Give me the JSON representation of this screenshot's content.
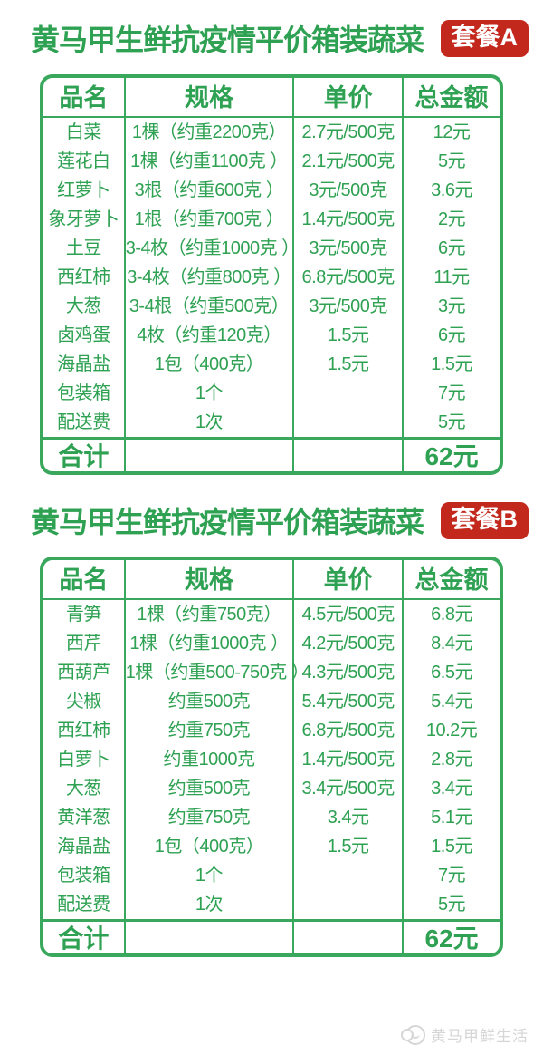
{
  "colors": {
    "green_text": "#2ea152",
    "green_border": "#3aa85c",
    "badge_red": "#c3281c",
    "badge_text": "#ffffff",
    "watermark_gray": "#d6d6d6",
    "background": "#ffffff"
  },
  "packages": [
    {
      "title": "黄马甲生鲜抗疫情平价箱装蔬菜",
      "badge": "套餐A",
      "columns": [
        "品名",
        "规格",
        "单价",
        "总金额"
      ],
      "rows": [
        [
          "白菜",
          "1棵（约重2200克）",
          "2.7元/500克",
          "12元"
        ],
        [
          "莲花白",
          "1棵（约重1100克 ）",
          "2.1元/500克",
          "5元"
        ],
        [
          "红萝卜",
          "3根（约重600克 ）",
          "3元/500克",
          "3.6元"
        ],
        [
          "象牙萝卜",
          "1根（约重700克 ）",
          "1.4元/500克",
          "2元"
        ],
        [
          "土豆",
          "3-4枚（约重1000克 ）",
          "3元/500克",
          "6元"
        ],
        [
          "西红柿",
          "3-4枚（约重800克 ）",
          "6.8元/500克",
          "11元"
        ],
        [
          "大葱",
          "3-4根（约重500克）",
          "3元/500克",
          "3元"
        ],
        [
          "卤鸡蛋",
          "4枚（约重120克）",
          "1.5元",
          "6元"
        ],
        [
          "海晶盐",
          "1包（400克）",
          "1.5元",
          "1.5元"
        ],
        [
          "包装箱",
          "1个",
          "",
          "7元"
        ],
        [
          "配送费",
          "1次",
          "",
          "5元"
        ]
      ],
      "total_label": "合计",
      "total_value": "62元"
    },
    {
      "title": "黄马甲生鲜抗疫情平价箱装蔬菜",
      "badge": "套餐B",
      "columns": [
        "品名",
        "规格",
        "单价",
        "总金额"
      ],
      "rows": [
        [
          "青笋",
          "1棵（约重750克）",
          "4.5元/500克",
          "6.8元"
        ],
        [
          "西芹",
          "1棵（约重1000克 ）",
          "4.2元/500克",
          "8.4元"
        ],
        [
          "西葫芦",
          "1棵（约重500-750克 ）",
          "4.3元/500克",
          "6.5元"
        ],
        [
          "尖椒",
          "约重500克",
          "5.4元/500克",
          "5.4元"
        ],
        [
          "西红柿",
          "约重750克",
          "6.8元/500克",
          "10.2元"
        ],
        [
          "白萝卜",
          "约重1000克",
          "1.4元/500克",
          "2.8元"
        ],
        [
          "大葱",
          "约重500克",
          "3.4元/500克",
          "3.4元"
        ],
        [
          "黄洋葱",
          "约重750克",
          "3.4元",
          "5.1元"
        ],
        [
          "海晶盐",
          "1包（400克）",
          "1.5元",
          "1.5元"
        ],
        [
          "包装箱",
          "1个",
          "",
          "7元"
        ],
        [
          "配送费",
          "1次",
          "",
          "5元"
        ]
      ],
      "total_label": "合计",
      "total_value": "62元"
    }
  ],
  "watermark": {
    "text": "黄马甲鲜生活"
  }
}
